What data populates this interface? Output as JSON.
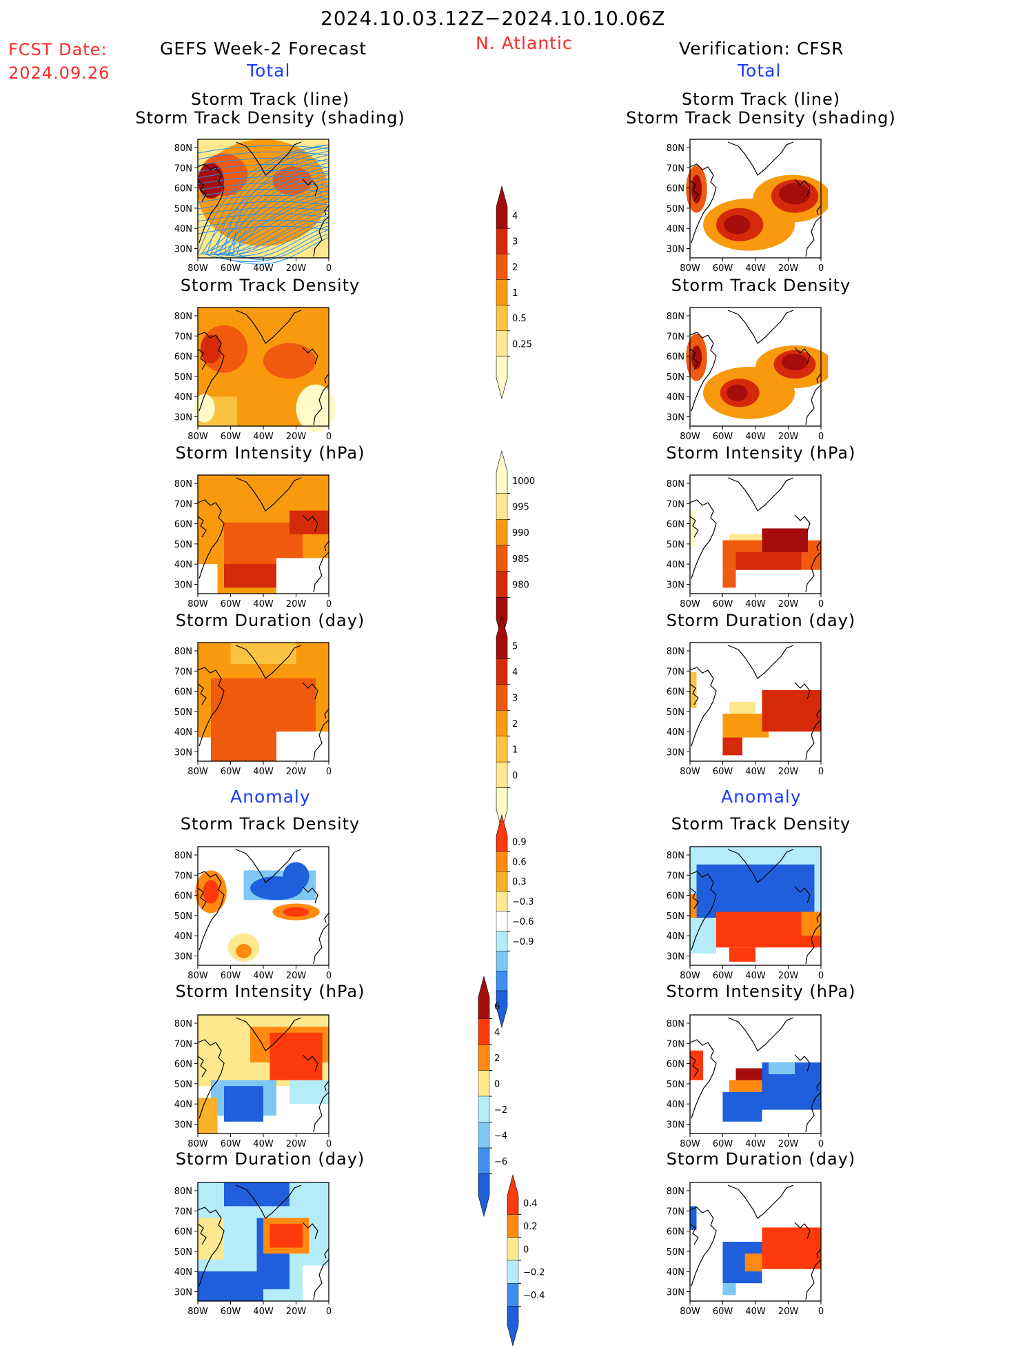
{
  "header": {
    "date_range": "2024.10.03.12Z−2024.10.10.06Z",
    "fcst_label": "FCST Date:",
    "fcst_date": "2024.09.26",
    "left_title": "GEFS Week-2 Forecast",
    "region": "N. Atlantic",
    "right_title": "Verification: CFSR",
    "total_left": "Total",
    "total_right": "Total",
    "anomaly_left": "Anomaly",
    "anomaly_right": "Anomaly"
  },
  "titles": {
    "track_line": "Storm Track (line)",
    "track_density_shading": "Storm Track Density (shading)",
    "track_density": "Storm Track Density",
    "intensity": "Storm Intensity (hPa)",
    "duration": "Storm Duration (day)"
  },
  "axes": {
    "lat_ticks": [
      "80N",
      "70N",
      "60N",
      "50N",
      "40N",
      "30N"
    ],
    "lon_ticks": [
      "80W",
      "60W",
      "40W",
      "20W",
      "0"
    ]
  },
  "colorbars": {
    "density": {
      "labels": [
        "4",
        "3",
        "2",
        "1",
        "0.5",
        "0.25"
      ],
      "colors": [
        "#a50d0d",
        "#d42a0a",
        "#ef5a0f",
        "#f99a0e",
        "#fbc341",
        "#fde88e",
        "#fffbc8"
      ]
    },
    "intensity": {
      "labels": [
        "1000",
        "995",
        "990",
        "985",
        "980"
      ],
      "colors": [
        "#fffbc8",
        "#fde88e",
        "#f99a0e",
        "#ef5a0f",
        "#d42a0a",
        "#a50d0d"
      ]
    },
    "duration": {
      "labels": [
        "5",
        "4",
        "3",
        "2",
        "1",
        "0"
      ],
      "colors": [
        "#a50d0d",
        "#d42a0a",
        "#ef5a0f",
        "#f99a0e",
        "#fbc341",
        "#fde88e",
        "#fffbc8"
      ]
    },
    "anom_density": {
      "labels": [
        "0.9",
        "0.6",
        "0.3",
        "−0.3",
        "−0.6",
        "−0.9"
      ],
      "colors": [
        "#ff3a0a",
        "#ff8a0f",
        "#fbb02a",
        "#fde88e",
        "#ffffff",
        "#b5ecfa",
        "#7fc8f5",
        "#3f8ff0",
        "#1f5fdc"
      ]
    },
    "anom_intensity": {
      "labels": [
        "6",
        "4",
        "2",
        "0",
        "−2",
        "−4",
        "−6"
      ],
      "colors": [
        "#a50d0d",
        "#ff3a0a",
        "#ff8a0f",
        "#fde88e",
        "#b5ecfa",
        "#7fc8f5",
        "#3f8ff0",
        "#1f5fdc"
      ]
    },
    "anom_duration": {
      "labels": [
        "0.4",
        "0.2",
        "0",
        "−0.2",
        "−0.4"
      ],
      "colors": [
        "#ff3a0a",
        "#ff8a0f",
        "#fde88e",
        "#b5ecfa",
        "#3f8ff0",
        "#1f5fdc"
      ]
    }
  }
}
